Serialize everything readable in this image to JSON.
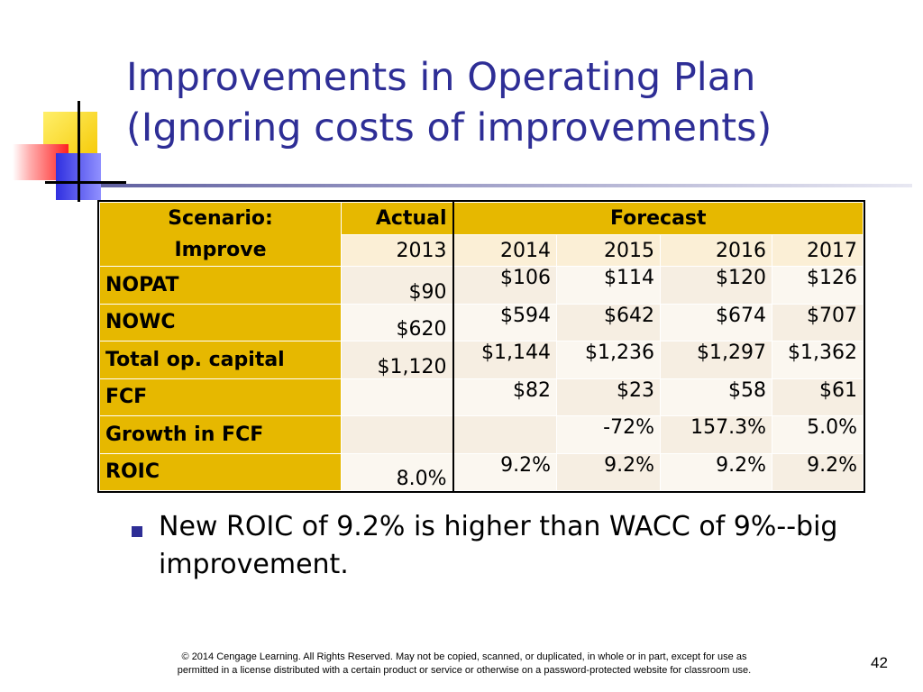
{
  "title": {
    "line1": "Improvements in Operating Plan",
    "line2": "(Ignoring costs of improvements)"
  },
  "table": {
    "corner_label_line1": "Scenario:",
    "corner_label_line2": "Improve",
    "actual_label": "Actual",
    "forecast_label": "Forecast",
    "years": [
      "2013",
      "2014",
      "2015",
      "2016",
      "2017"
    ],
    "rows": [
      {
        "label": "NOPAT",
        "values": [
          "$90",
          "$106",
          "$114",
          "$120",
          "$126"
        ]
      },
      {
        "label": "NOWC",
        "values": [
          "$620",
          "$594",
          "$642",
          "$674",
          "$707"
        ]
      },
      {
        "label": "Total op. capital",
        "values": [
          "$1,120",
          "$1,144",
          "$1,236",
          "$1,297",
          "$1,362"
        ]
      },
      {
        "label": "FCF",
        "values": [
          "",
          "$82",
          "$23",
          "$58",
          "$61"
        ]
      },
      {
        "label": "Growth in FCF",
        "values": [
          "",
          "",
          "-72%",
          "157.3%",
          "5.0%"
        ]
      },
      {
        "label": "ROIC",
        "values": [
          "8.0%",
          "9.2%",
          "9.2%",
          "9.2%",
          "9.2%"
        ]
      }
    ]
  },
  "bullet": "New ROIC of 9.2% is higher than WACC of 9%--big improvement.",
  "footer": {
    "line1": "© 2014 Cengage Learning. All Rights Reserved. May not be copied, scanned, or duplicated, in whole or in part, except for use as",
    "line2": "permitted in a license distributed with a certain product or service or otherwise on a password-protected website for classroom use."
  },
  "page_number": "42",
  "colors": {
    "title": "#2e2e96",
    "header_gold": "#e6b800",
    "bullet": "#2e2e96"
  },
  "icons": [
    "logo-squares-icon",
    "square-bullet-icon"
  ]
}
